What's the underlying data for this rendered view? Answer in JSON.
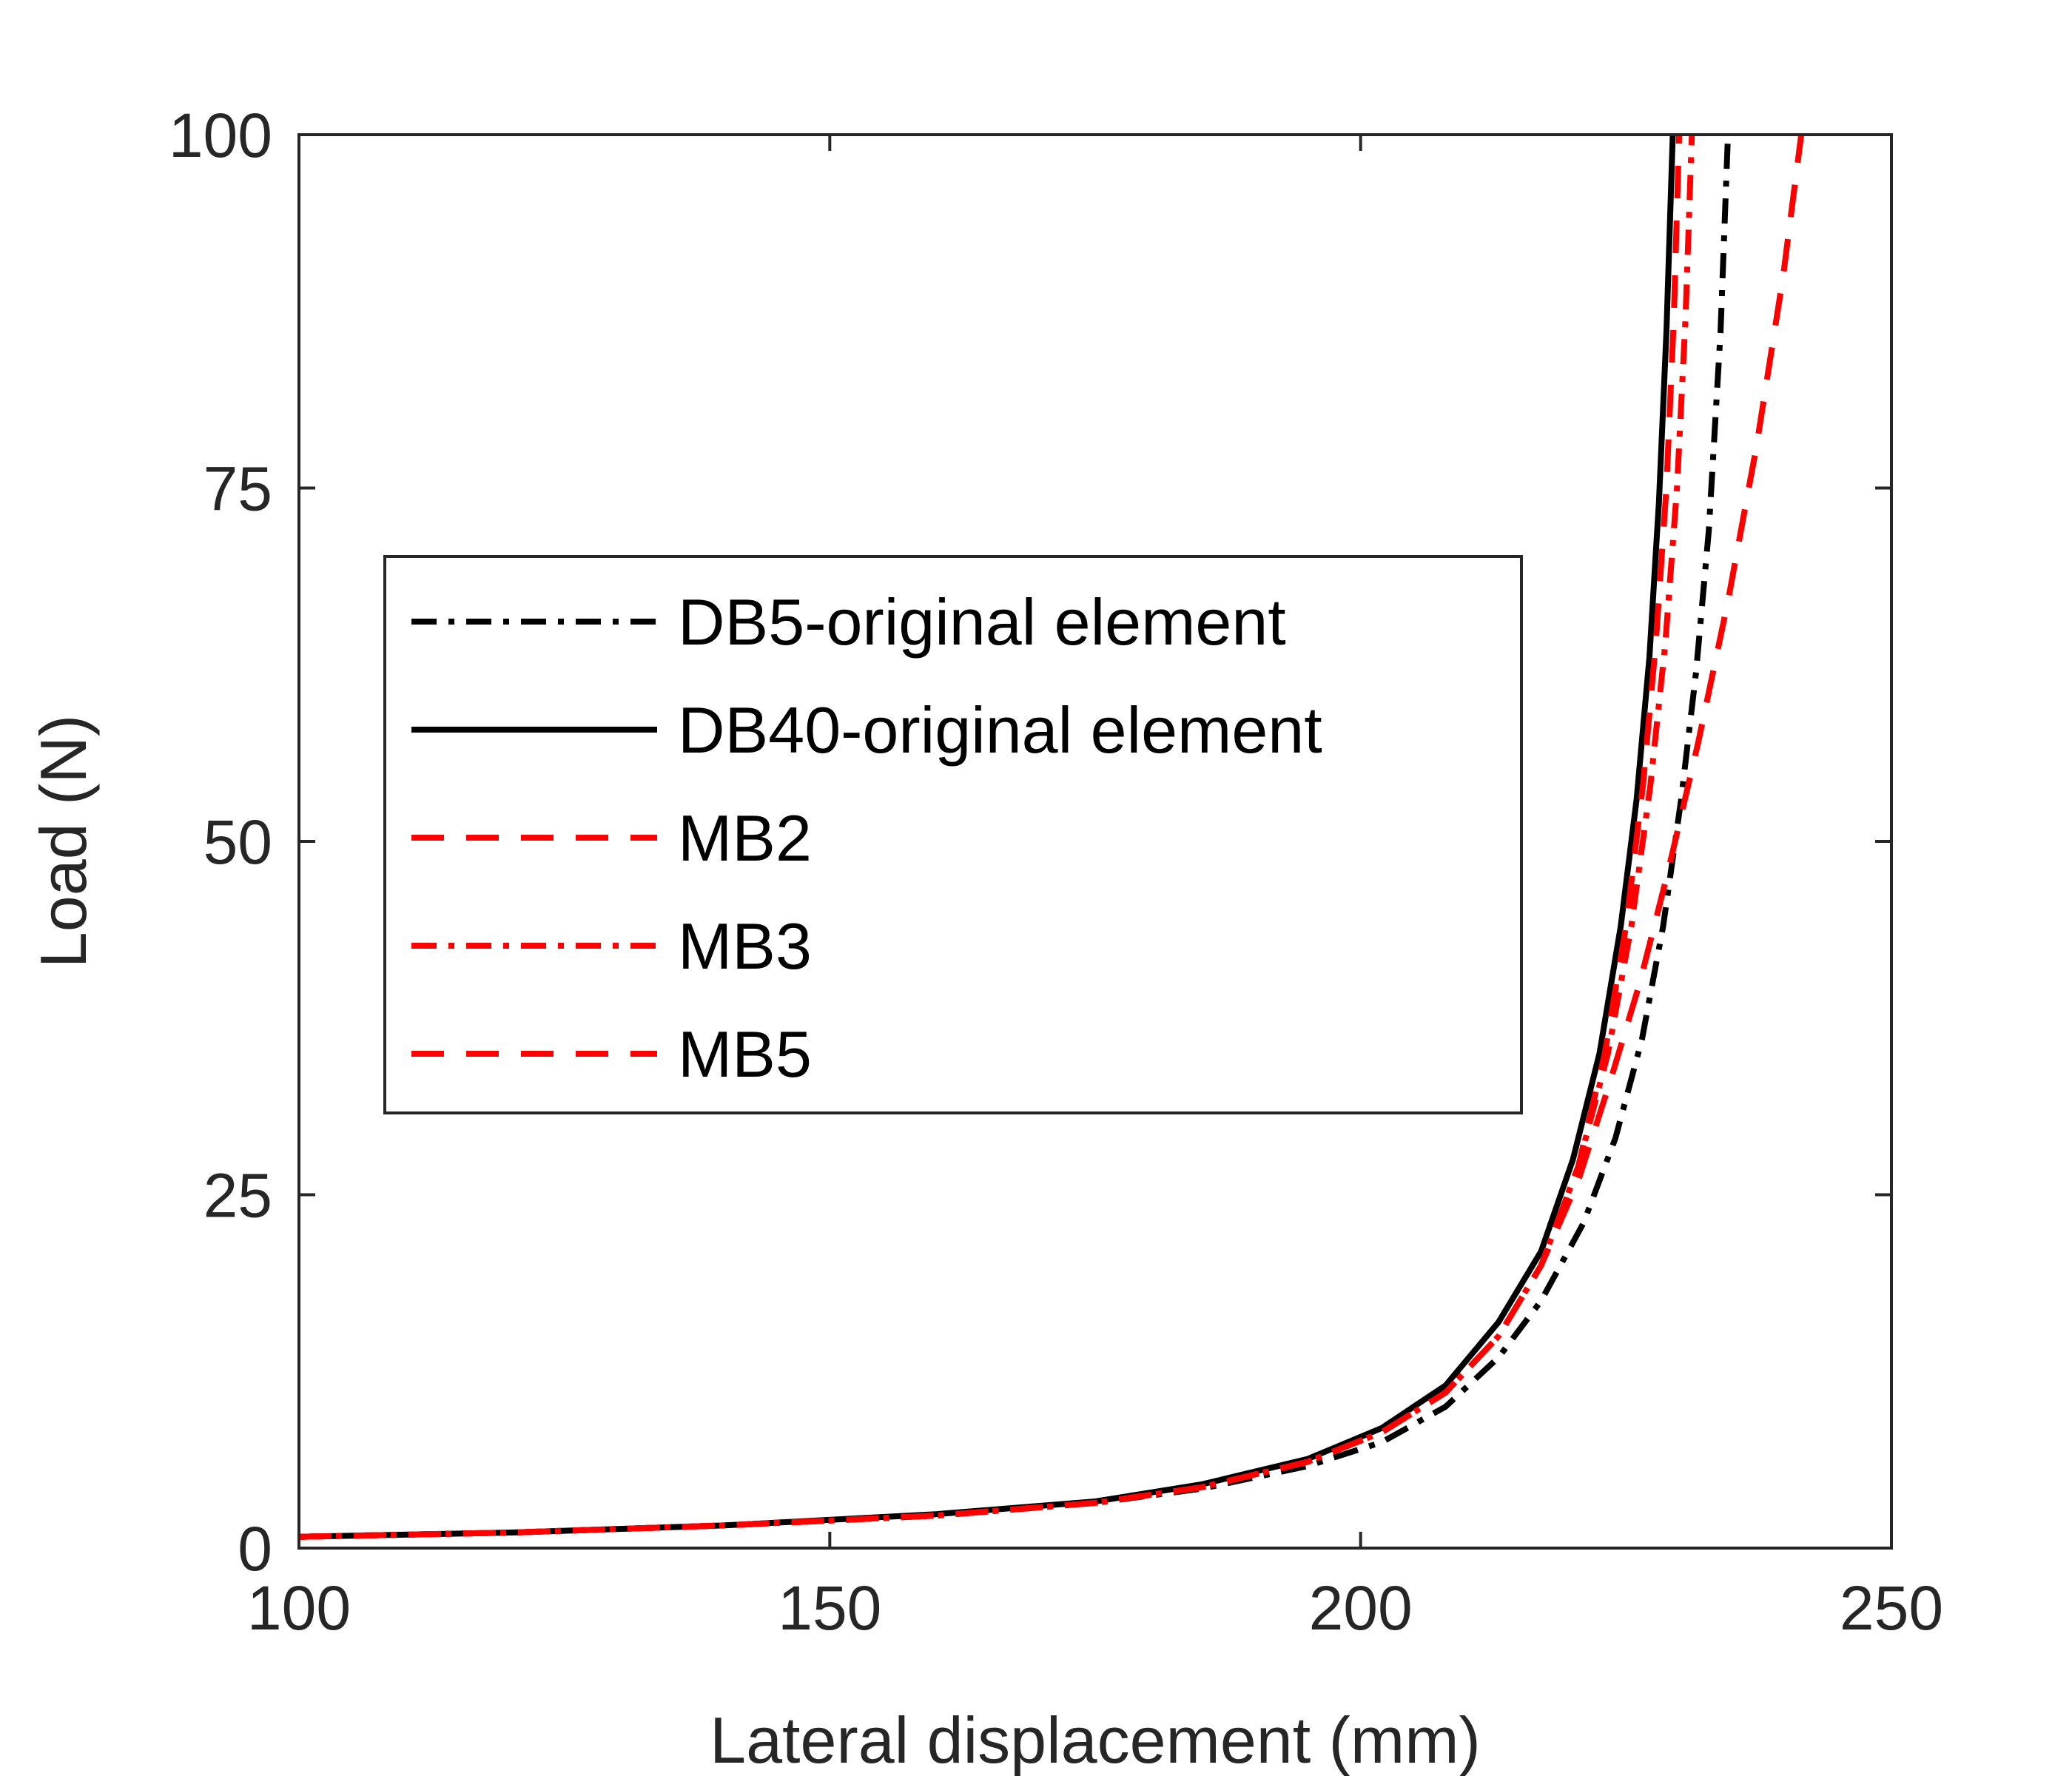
{
  "chart_data": {
    "type": "line",
    "title": "",
    "xlabel": "Lateral displacement (mm)",
    "ylabel": "Load (N)",
    "xlim": [
      100,
      250
    ],
    "ylim": [
      0,
      100
    ],
    "xticks": [
      100,
      150,
      200,
      250
    ],
    "yticks": [
      0,
      25,
      50,
      75,
      100
    ],
    "grid": false,
    "legend_position": "center-left",
    "series": [
      {
        "name": "DB5-original element",
        "color": "#000000",
        "dash": "dash-dot",
        "x": [
          100,
          120,
          140,
          160,
          175,
          185,
          195,
          202,
          208,
          213,
          217,
          221,
          224,
          226.5,
          228.5,
          230.2,
          231.6,
          232.8,
          233.9,
          234.6
        ],
        "y": [
          0.8,
          1.1,
          1.6,
          2.3,
          3.2,
          4.2,
          5.8,
          7.5,
          10,
          13.5,
          17.5,
          23,
          29,
          36,
          44,
          53,
          62,
          72,
          86,
          100
        ]
      },
      {
        "name": "DB40-original element",
        "color": "#000000",
        "dash": "solid",
        "x": [
          100,
          120,
          140,
          160,
          175,
          185,
          195,
          202,
          208,
          213,
          217,
          220,
          222.5,
          224.5,
          226,
          227.2,
          228.1,
          228.8,
          229.4
        ],
        "y": [
          0.8,
          1.1,
          1.6,
          2.4,
          3.3,
          4.5,
          6.3,
          8.5,
          11.5,
          16,
          21,
          27.5,
          35,
          44,
          53,
          63,
          74,
          86,
          100
        ]
      },
      {
        "name": "MB2",
        "color": "#ff0000",
        "dash": "dashed",
        "x": [
          100,
          120,
          140,
          160,
          175,
          185,
          195,
          202,
          208,
          213,
          217,
          220.5,
          223,
          225,
          226.6,
          227.8,
          228.8,
          229.5,
          230
        ],
        "y": [
          0.8,
          1.1,
          1.6,
          2.3,
          3.2,
          4.3,
          6.1,
          8.2,
          11,
          15,
          20,
          27,
          35,
          44,
          54,
          64,
          75,
          87,
          100
        ]
      },
      {
        "name": "MB3",
        "color": "#ff0000",
        "dash": "dash-dot",
        "x": [
          100,
          120,
          140,
          160,
          175,
          185,
          195,
          202,
          208,
          213,
          217,
          220.5,
          223.3,
          225.5,
          227.3,
          228.7,
          229.8,
          230.6,
          231.2
        ],
        "y": [
          0.8,
          1.1,
          1.6,
          2.3,
          3.2,
          4.3,
          6.1,
          8.2,
          11,
          15,
          20,
          27,
          35,
          44,
          54,
          64,
          75,
          87,
          100
        ]
      },
      {
        "name": "MB5",
        "color": "#ff0000",
        "dash": "dashed",
        "x": [
          100,
          120,
          140,
          160,
          175,
          185,
          195,
          202,
          208,
          213,
          217,
          220.5,
          223.5,
          226.3,
          229,
          231.8,
          234.6,
          237.3,
          239.8,
          241.5
        ],
        "y": [
          0.8,
          1.1,
          1.6,
          2.3,
          3.2,
          4.3,
          6.1,
          8.2,
          11,
          15,
          20,
          26,
          33,
          40,
          48,
          57,
          67,
          78,
          90,
          100
        ]
      }
    ]
  }
}
